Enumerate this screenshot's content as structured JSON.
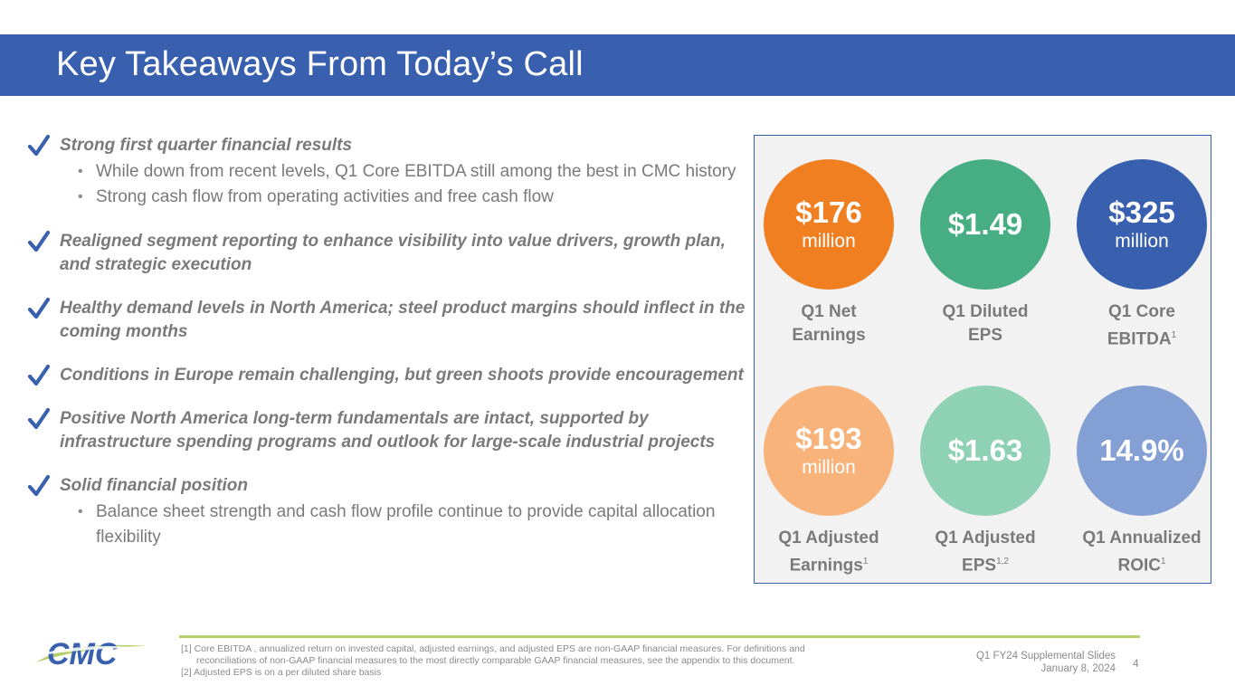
{
  "header": {
    "title": "Key Takeaways From Today’s Call"
  },
  "colors": {
    "title_bar": "#3960ae",
    "check": "#3960ae",
    "panel_border": "#3960ae",
    "panel_bg": "#f2f2f2",
    "rule": "#b5cf6b"
  },
  "takeaways": [
    {
      "icon": "checkmark-icon",
      "head": "Strong first quarter financial results",
      "subs": [
        "While down from recent levels, Q1 Core EBITDA still among the best in CMC history",
        "Strong cash flow from operating activities and free cash flow"
      ]
    },
    {
      "icon": "checkmark-icon",
      "head": "Realigned segment reporting to enhance visibility into value drivers, growth plan, and strategic execution",
      "subs": []
    },
    {
      "icon": "checkmark-icon",
      "head": "Healthy demand levels in North America; steel product margins should inflect in the coming months",
      "subs": []
    },
    {
      "icon": "checkmark-icon",
      "head": "Conditions in Europe remain challenging, but green shoots provide encouragement",
      "subs": []
    },
    {
      "icon": "checkmark-icon",
      "head": "Positive North America long-term fundamentals are intact, supported by infrastructure spending programs and outlook for large-scale industrial projects",
      "subs": []
    },
    {
      "icon": "checkmark-icon",
      "head": "Solid financial position",
      "subs": [
        "Balance sheet strength and cash flow profile continue to provide capital allocation flexibility"
      ]
    }
  ],
  "metrics": [
    {
      "value": "$176",
      "unit": "million",
      "label_line1": "Q1 Net",
      "label_line2": "Earnings",
      "sup": "",
      "color": "#f07f22"
    },
    {
      "value": "$1.49",
      "unit": "",
      "label_line1": "Q1 Diluted",
      "label_line2": "EPS",
      "sup": "",
      "color": "#46ae82"
    },
    {
      "value": "$325",
      "unit": "million",
      "label_line1": "Q1 Core",
      "label_line2": "EBITDA",
      "sup": "1",
      "color": "#3960ae"
    },
    {
      "value": "$193",
      "unit": "million",
      "label_line1": "Q1 Adjusted",
      "label_line2": "Earnings",
      "sup": "1",
      "color": "#f7b37a"
    },
    {
      "value": "$1.63",
      "unit": "",
      "label_line1": "Q1 Adjusted",
      "label_line2": "EPS",
      "sup": "1,2",
      "color": "#8ed1b4"
    },
    {
      "value": "14.9%",
      "unit": "",
      "label_line1": "Q1 Annualized",
      "label_line2": "ROIC",
      "sup": "1",
      "color": "#849fd3"
    }
  ],
  "footer": {
    "logo_text": "CMC",
    "footnote_1a": "[1] Core EBITDA , annualized return on invested capital, adjusted earnings, and adjusted EPS are non-GAAP financial measures. For definitions and",
    "footnote_1b": "reconciliations of non-GAAP financial measures to the most directly comparable GAAP financial measures, see the appendix to this document.",
    "footnote_2": "[2] Adjusted EPS is on a per diluted share basis",
    "slide_title": "Q1 FY24 Supplemental Slides",
    "slide_date": "January 8, 2024",
    "page_number": "4"
  }
}
